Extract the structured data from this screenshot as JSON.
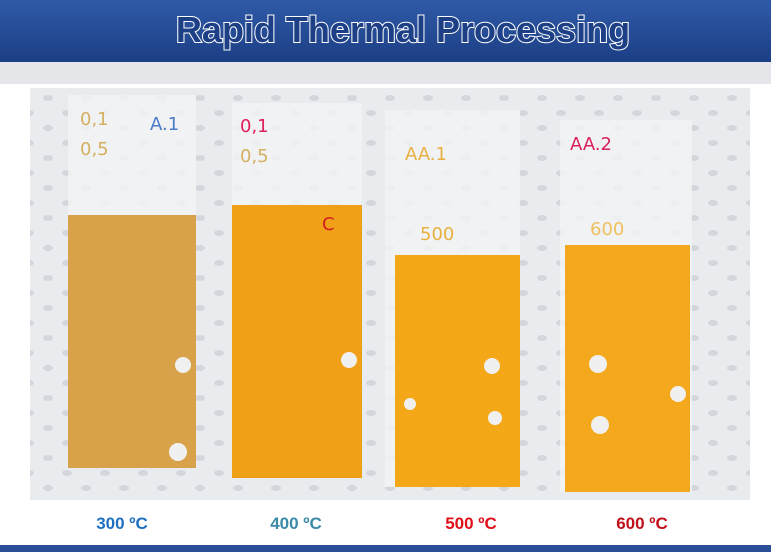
{
  "header": {
    "title": "Rapid Thermal Processing"
  },
  "photo": {
    "sample_notes": [
      {
        "lines": [
          "0,1",
          "0,5",
          "A.1"
        ]
      },
      {
        "lines": [
          "0,1",
          "0,5",
          "C"
        ]
      },
      {
        "lines": [
          "AA.1",
          "500"
        ]
      },
      {
        "lines": [
          "AA.2",
          "600"
        ]
      }
    ]
  },
  "captions": [
    "300 ºC",
    "400 ºC",
    "500 ºC",
    "600 ºC"
  ]
}
